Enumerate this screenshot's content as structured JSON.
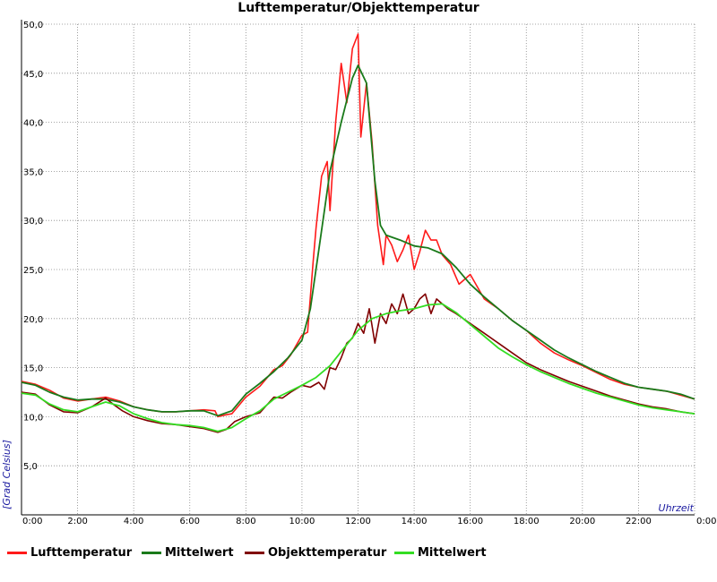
{
  "chart_data": {
    "type": "line",
    "title": "Lufttemperatur/Objekttemperatur",
    "ylabel": "[Grad Celsius]",
    "xlabel": "Uhrzeit",
    "ylim": [
      0,
      50
    ],
    "xlim": [
      0,
      24
    ],
    "grid": true,
    "legend_position": "bottom",
    "y_ticks": [
      "5,0",
      "10,0",
      "15,0",
      "20,0",
      "25,0",
      "30,0",
      "35,0",
      "40,0",
      "45,0",
      "50,0"
    ],
    "x_ticks": [
      "0:00",
      "2:00",
      "4:00",
      "6:00",
      "8:00",
      "10:00",
      "12:00",
      "14:00",
      "16:00",
      "18:00",
      "20:00",
      "22:00",
      "0:00"
    ],
    "series": [
      {
        "name": "Lufttemperatur",
        "color": "#ff1a1a",
        "x": [
          0,
          0.5,
          1,
          1.5,
          2,
          2.5,
          3,
          3.5,
          4,
          4.5,
          5,
          5.5,
          6,
          6.5,
          6.9,
          7.0,
          7.3,
          7.5,
          8,
          8.5,
          9,
          9.3,
          9.6,
          10,
          10.2,
          10.4,
          10.5,
          10.7,
          10.9,
          11.0,
          11.2,
          11.4,
          11.6,
          11.8,
          12.0,
          12.1,
          12.3,
          12.5,
          12.7,
          12.9,
          13.0,
          13.2,
          13.4,
          13.6,
          13.8,
          14.0,
          14.2,
          14.4,
          14.6,
          14.8,
          15.0,
          15.3,
          15.6,
          16.0,
          16.5,
          17,
          17.5,
          18,
          18.5,
          19,
          19.5,
          20,
          20.5,
          21,
          21.5,
          22,
          22.5,
          23,
          23.5,
          24
        ],
        "values": [
          13.6,
          13.3,
          12.7,
          11.9,
          11.6,
          11.8,
          12.0,
          11.6,
          11.0,
          10.7,
          10.5,
          10.5,
          10.6,
          10.7,
          10.6,
          10.0,
          10.2,
          10.3,
          12.0,
          13.1,
          14.8,
          15.2,
          16.3,
          18.3,
          18.6,
          25.8,
          29.2,
          34.5,
          36.0,
          31.0,
          40.0,
          46.0,
          42.0,
          47.5,
          49.0,
          38.5,
          44.0,
          38.0,
          29.5,
          25.5,
          28.5,
          27.5,
          25.8,
          27.0,
          28.5,
          25.0,
          26.8,
          29.0,
          28.0,
          28.0,
          26.5,
          25.5,
          23.5,
          24.5,
          22.0,
          21.0,
          19.8,
          18.8,
          17.5,
          16.5,
          15.8,
          15.2,
          14.5,
          13.8,
          13.3,
          13.0,
          12.8,
          12.6,
          12.2,
          11.8
        ]
      },
      {
        "name": "Mittelwert",
        "color": "#1a7a1a",
        "x": [
          0,
          0.5,
          1,
          1.5,
          2,
          2.5,
          3,
          3.5,
          4,
          4.5,
          5,
          5.5,
          6,
          6.5,
          7,
          7.5,
          8,
          8.5,
          9,
          9.5,
          10,
          10.3,
          10.6,
          11.0,
          11.4,
          11.8,
          12.0,
          12.3,
          12.6,
          12.8,
          13.0,
          13.5,
          14,
          14.5,
          15,
          15.5,
          16,
          16.5,
          17,
          17.5,
          18,
          18.5,
          19,
          19.5,
          20,
          20.5,
          21,
          21.5,
          22,
          22.5,
          23,
          23.5,
          24
        ],
        "values": [
          13.5,
          13.2,
          12.5,
          12.0,
          11.7,
          11.8,
          11.8,
          11.5,
          11.0,
          10.7,
          10.5,
          10.5,
          10.6,
          10.6,
          10.1,
          10.6,
          12.3,
          13.4,
          14.6,
          16.0,
          17.8,
          21.0,
          27.0,
          35.0,
          40.0,
          44.5,
          45.8,
          44.0,
          34.0,
          29.5,
          28.5,
          28.0,
          27.4,
          27.2,
          26.6,
          25.2,
          23.5,
          22.2,
          21.0,
          19.8,
          18.8,
          17.8,
          16.8,
          16.0,
          15.3,
          14.6,
          14.0,
          13.4,
          13.0,
          12.8,
          12.6,
          12.3,
          11.8
        ]
      },
      {
        "name": "Objekttemperatur",
        "color": "#800000",
        "x": [
          0,
          0.5,
          1,
          1.5,
          2,
          2.5,
          3,
          3.3,
          3.6,
          4,
          4.5,
          5,
          5.5,
          6,
          6.5,
          7,
          7.3,
          7.6,
          8,
          8.5,
          9,
          9.3,
          9.6,
          10,
          10.3,
          10.6,
          10.8,
          11.0,
          11.2,
          11.4,
          11.6,
          11.8,
          12.0,
          12.2,
          12.4,
          12.6,
          12.8,
          13.0,
          13.2,
          13.4,
          13.6,
          13.8,
          14.0,
          14.2,
          14.4,
          14.6,
          14.8,
          15.0,
          15.2,
          15.5,
          16,
          16.5,
          17,
          17.5,
          18,
          18.5,
          19,
          19.5,
          20,
          20.5,
          21,
          21.5,
          22,
          22.5,
          23,
          23.5,
          24
        ],
        "values": [
          12.5,
          12.3,
          11.2,
          10.5,
          10.4,
          11.0,
          11.9,
          11.2,
          10.6,
          10.0,
          9.6,
          9.3,
          9.2,
          9.0,
          8.8,
          8.4,
          8.7,
          9.5,
          10.0,
          10.4,
          12.0,
          11.9,
          12.5,
          13.2,
          13.0,
          13.5,
          12.8,
          15.0,
          14.8,
          16.0,
          17.5,
          18.0,
          19.5,
          18.5,
          21.0,
          17.5,
          20.5,
          19.5,
          21.5,
          20.5,
          22.5,
          20.5,
          21.0,
          22.0,
          22.5,
          20.5,
          22.0,
          21.5,
          21.0,
          20.5,
          19.5,
          18.5,
          17.5,
          16.5,
          15.5,
          14.8,
          14.2,
          13.6,
          13.1,
          12.6,
          12.1,
          11.7,
          11.3,
          11.0,
          10.8,
          10.5,
          10.3
        ]
      },
      {
        "name": "Mittelwert",
        "color": "#33dd22",
        "x": [
          0,
          0.5,
          1,
          1.5,
          2,
          2.5,
          3,
          3.5,
          4,
          4.5,
          5,
          5.5,
          6,
          6.5,
          7,
          7.5,
          8,
          8.5,
          9,
          9.5,
          10,
          10.5,
          11,
          11.5,
          12,
          12.5,
          13,
          13.5,
          14,
          14.5,
          15,
          15.5,
          16,
          16.5,
          17,
          17.5,
          18,
          18.5,
          19,
          19.5,
          20,
          20.5,
          21,
          21.5,
          22,
          22.5,
          23,
          23.5,
          24
        ],
        "values": [
          12.4,
          12.2,
          11.3,
          10.7,
          10.5,
          11.0,
          11.5,
          11.1,
          10.3,
          9.8,
          9.4,
          9.2,
          9.1,
          8.9,
          8.5,
          8.9,
          9.8,
          10.6,
          11.8,
          12.5,
          13.2,
          14.0,
          15.2,
          17.0,
          18.8,
          20.0,
          20.5,
          20.8,
          21.0,
          21.4,
          21.5,
          20.6,
          19.4,
          18.2,
          17.0,
          16.1,
          15.3,
          14.6,
          14.0,
          13.4,
          12.9,
          12.4,
          12.0,
          11.6,
          11.2,
          10.9,
          10.7,
          10.5,
          10.3
        ]
      }
    ]
  }
}
